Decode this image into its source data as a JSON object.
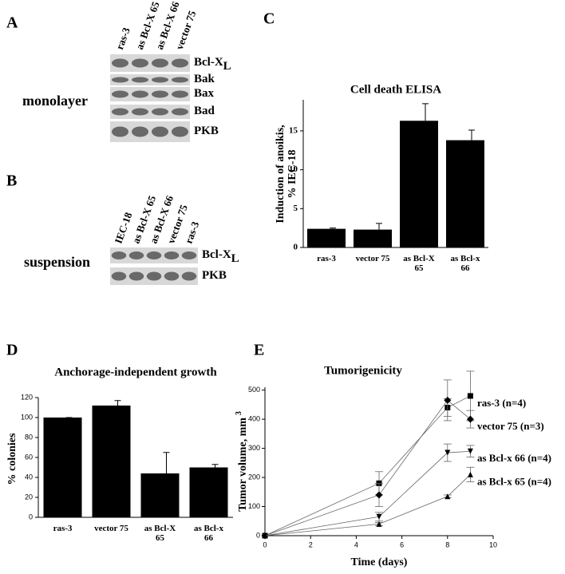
{
  "panels": {
    "a": "A",
    "b": "B",
    "c": "C",
    "d": "D",
    "e": "E"
  },
  "blot_a": {
    "condition": "monolayer",
    "lanes": [
      "ras-3",
      "as Bcl-X 65",
      "as Bcl-X 66",
      "vector 75"
    ],
    "bands": [
      {
        "name": "Bcl-X",
        "sub": "L"
      },
      {
        "name": "Bak"
      },
      {
        "name": "Bax"
      },
      {
        "name": "Bad"
      },
      {
        "name": "PKB"
      }
    ]
  },
  "blot_b": {
    "condition": "suspension",
    "lanes": [
      "IEC-18",
      "as Bcl-X 65",
      "as Bcl-X 66",
      "vector 75",
      "ras-3"
    ],
    "bands": [
      {
        "name": "Bcl-X",
        "sub": "L"
      },
      {
        "name": "PKB"
      }
    ]
  },
  "chart_data": [
    {
      "type": "bar",
      "title": "Cell death ELISA",
      "y_label": [
        "Induction of anoikis,",
        "% IEC-18"
      ],
      "categories": [
        "ras-3",
        "vector 75",
        "as Bcl-X 65",
        "as Bcl-x 66"
      ],
      "values": [
        2.4,
        2.3,
        16.3,
        13.8
      ],
      "errors": [
        0.1,
        0.8,
        2.2,
        1.3
      ],
      "color": "#000000",
      "ylim": [
        0,
        19
      ],
      "yticks": [
        0,
        5,
        10,
        15
      ]
    },
    {
      "type": "bar",
      "title": "Anchorage-independent growth",
      "y_label": [
        "% colonies"
      ],
      "categories": [
        "ras-3",
        "vector 75",
        "as Bcl-X 65",
        "as Bcl-x 66"
      ],
      "values": [
        100,
        112,
        44,
        50
      ],
      "errors": [
        0,
        5,
        21,
        3
      ],
      "color": "#000000",
      "ylim": [
        0,
        120
      ],
      "yticks": [
        0,
        20,
        40,
        60,
        80,
        100,
        120
      ]
    },
    {
      "type": "line",
      "title": "Tumorigenicity",
      "x_label": "Time (days)",
      "y_label": "Tumor volume, mm",
      "y_label_sup": "3",
      "xlim": [
        0,
        10
      ],
      "xticks": [
        0,
        2,
        4,
        6,
        8,
        10
      ],
      "ylim": [
        0,
        510
      ],
      "yticks": [
        0,
        100,
        200,
        300,
        400,
        500
      ],
      "series": [
        {
          "name": "ras-3 (n=4)",
          "marker": "square",
          "x": [
            0,
            5,
            8,
            9
          ],
          "values": [
            0,
            180,
            440,
            480
          ],
          "errors": [
            0,
            40,
            30,
            85
          ]
        },
        {
          "name": "vector 75 (n=3)",
          "marker": "diamond",
          "x": [
            0,
            5,
            8,
            9
          ],
          "values": [
            0,
            140,
            465,
            400
          ],
          "errors": [
            0,
            40,
            70,
            30
          ]
        },
        {
          "name": "as Bcl-x 66 (n=4)",
          "marker": "triangle-down",
          "x": [
            0,
            5,
            8,
            9
          ],
          "values": [
            0,
            65,
            285,
            290
          ],
          "errors": [
            0,
            15,
            30,
            20
          ]
        },
        {
          "name": "as Bcl-x 65 (n=4)",
          "marker": "triangle",
          "x": [
            0,
            5,
            8,
            9
          ],
          "values": [
            0,
            40,
            135,
            210
          ],
          "errors": [
            0,
            5,
            5,
            25
          ]
        }
      ]
    }
  ]
}
